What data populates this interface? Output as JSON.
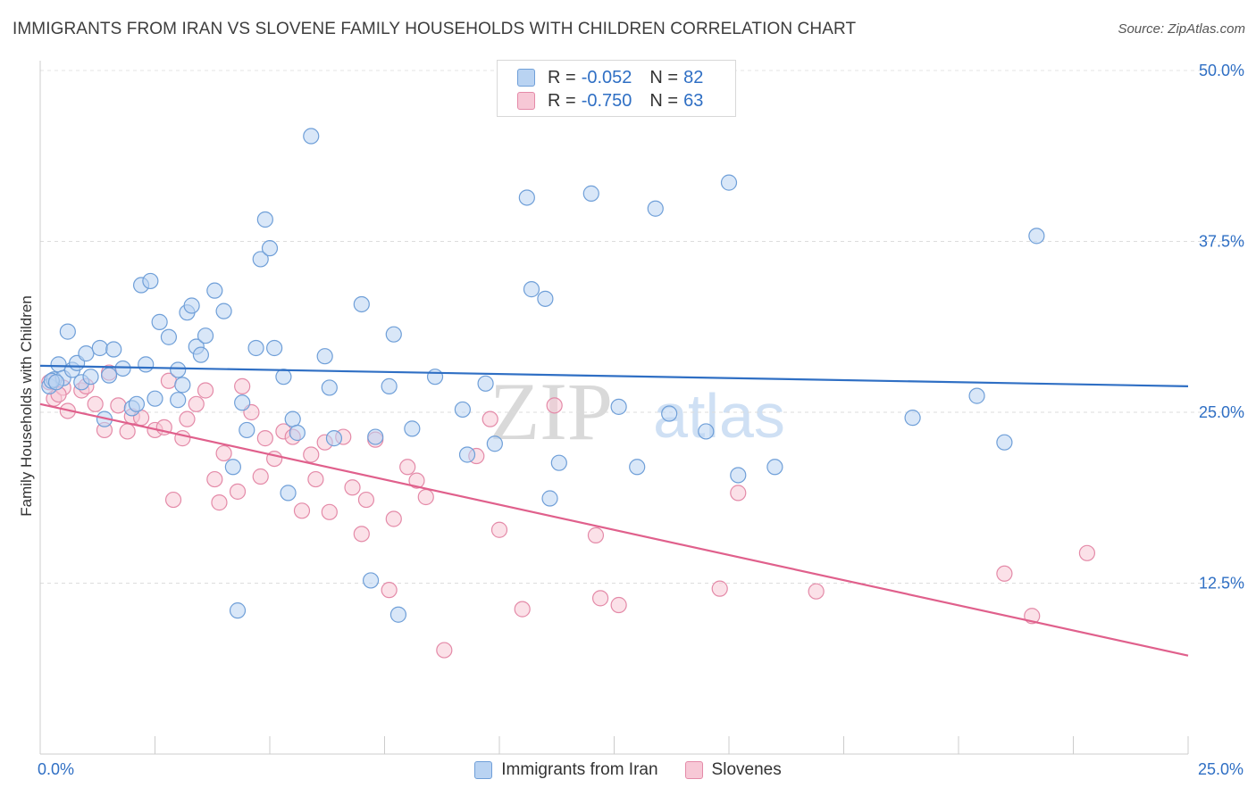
{
  "title": "IMMIGRANTS FROM IRAN VS SLOVENE FAMILY HOUSEHOLDS WITH CHILDREN CORRELATION CHART",
  "source": "Source: ZipAtlas.com",
  "watermark": {
    "zip": "ZIP",
    "atlas": "atlas"
  },
  "colors": {
    "blue_fill": "#b9d3f2",
    "blue_stroke": "#6f9fd8",
    "blue_line": "#2f6fc4",
    "pink_fill": "#f7c8d6",
    "pink_stroke": "#e48aa8",
    "pink_line": "#e0608c",
    "axis_text": "#2f6fc4"
  },
  "legend_top": [
    {
      "r_label": "R =",
      "r_value": "-0.052",
      "n_label": "N =",
      "n_value": "82"
    },
    {
      "r_label": "R =",
      "r_value": "-0.750",
      "n_label": "N =",
      "n_value": "63"
    }
  ],
  "chart_data": {
    "type": "scatter",
    "title": "IMMIGRANTS FROM IRAN VS SLOVENE FAMILY HOUSEHOLDS WITH CHILDREN CORRELATION CHART",
    "xlabel": "",
    "ylabel": "Family Households with Children",
    "xlim": [
      0,
      25
    ],
    "ylim": [
      0,
      50
    ],
    "x_tick_labels": [
      "0.0%",
      "25.0%"
    ],
    "y_ticks": [
      12.5,
      25.0,
      37.5,
      50.0
    ],
    "y_tick_labels": [
      "12.5%",
      "25.0%",
      "37.5%",
      "50.0%"
    ],
    "grid": "horizontal dashed",
    "legend_position": "bottom",
    "series": [
      {
        "name": "Immigrants from Iran",
        "trend": {
          "x": [
            0,
            25
          ],
          "y": [
            28.4,
            26.9
          ]
        },
        "points": [
          [
            0.2,
            26.9
          ],
          [
            0.3,
            27.4
          ],
          [
            0.4,
            28.5
          ],
          [
            0.5,
            27.5
          ],
          [
            0.6,
            30.9
          ],
          [
            0.7,
            28.1
          ],
          [
            0.8,
            28.6
          ],
          [
            0.9,
            27.2
          ],
          [
            1.0,
            29.3
          ],
          [
            1.1,
            27.6
          ],
          [
            1.3,
            29.7
          ],
          [
            1.4,
            24.5
          ],
          [
            1.5,
            27.7
          ],
          [
            1.6,
            29.6
          ],
          [
            1.8,
            28.2
          ],
          [
            2.0,
            25.3
          ],
          [
            2.1,
            25.6
          ],
          [
            2.2,
            34.3
          ],
          [
            2.3,
            28.5
          ],
          [
            2.4,
            34.6
          ],
          [
            2.5,
            26.0
          ],
          [
            2.6,
            31.6
          ],
          [
            2.8,
            30.5
          ],
          [
            3.0,
            25.9
          ],
          [
            3.0,
            28.1
          ],
          [
            3.1,
            27.0
          ],
          [
            3.2,
            32.3
          ],
          [
            3.3,
            32.8
          ],
          [
            3.4,
            29.8
          ],
          [
            3.5,
            29.2
          ],
          [
            3.6,
            30.6
          ],
          [
            3.8,
            33.9
          ],
          [
            4.0,
            32.4
          ],
          [
            4.2,
            21.0
          ],
          [
            4.3,
            10.5
          ],
          [
            4.4,
            25.7
          ],
          [
            4.5,
            23.7
          ],
          [
            4.7,
            29.7
          ],
          [
            4.8,
            36.2
          ],
          [
            4.9,
            39.1
          ],
          [
            5.0,
            37.0
          ],
          [
            5.1,
            29.7
          ],
          [
            5.3,
            27.6
          ],
          [
            5.4,
            19.1
          ],
          [
            5.5,
            24.5
          ],
          [
            5.6,
            23.5
          ],
          [
            5.9,
            45.2
          ],
          [
            6.2,
            29.1
          ],
          [
            6.3,
            26.8
          ],
          [
            6.4,
            23.1
          ],
          [
            7.0,
            32.9
          ],
          [
            7.2,
            12.7
          ],
          [
            7.3,
            23.2
          ],
          [
            7.6,
            26.9
          ],
          [
            7.7,
            30.7
          ],
          [
            7.8,
            10.2
          ],
          [
            8.1,
            23.8
          ],
          [
            8.6,
            27.6
          ],
          [
            9.2,
            25.2
          ],
          [
            9.3,
            21.9
          ],
          [
            9.7,
            27.1
          ],
          [
            9.9,
            22.7
          ],
          [
            10.6,
            40.7
          ],
          [
            10.7,
            34.0
          ],
          [
            11.0,
            33.3
          ],
          [
            11.1,
            18.7
          ],
          [
            11.3,
            21.3
          ],
          [
            12.0,
            41.0
          ],
          [
            12.6,
            25.4
          ],
          [
            13.0,
            21.0
          ],
          [
            13.4,
            39.9
          ],
          [
            13.7,
            24.9
          ],
          [
            14.5,
            23.6
          ],
          [
            15.0,
            41.8
          ],
          [
            15.2,
            20.4
          ],
          [
            16.0,
            21.0
          ],
          [
            19.0,
            24.6
          ],
          [
            20.4,
            26.2
          ],
          [
            21.0,
            22.8
          ],
          [
            21.7,
            37.9
          ],
          [
            0.25,
            27.3
          ],
          [
            0.35,
            27.2
          ]
        ]
      },
      {
        "name": "Slovenes",
        "trend": {
          "x": [
            0,
            25
          ],
          "y": [
            25.6,
            7.2
          ]
        },
        "points": [
          [
            0.2,
            27.2
          ],
          [
            0.3,
            26.0
          ],
          [
            0.5,
            26.8
          ],
          [
            0.6,
            25.1
          ],
          [
            0.9,
            26.6
          ],
          [
            1.0,
            26.9
          ],
          [
            1.2,
            25.6
          ],
          [
            1.4,
            23.7
          ],
          [
            1.5,
            27.9
          ],
          [
            1.7,
            25.5
          ],
          [
            1.9,
            23.6
          ],
          [
            2.0,
            24.7
          ],
          [
            2.2,
            24.6
          ],
          [
            2.5,
            23.7
          ],
          [
            2.7,
            23.9
          ],
          [
            2.8,
            27.3
          ],
          [
            2.9,
            18.6
          ],
          [
            3.1,
            23.1
          ],
          [
            3.2,
            24.5
          ],
          [
            3.4,
            25.6
          ],
          [
            3.6,
            26.6
          ],
          [
            3.8,
            20.1
          ],
          [
            3.9,
            18.4
          ],
          [
            4.0,
            22.0
          ],
          [
            4.3,
            19.2
          ],
          [
            4.4,
            26.9
          ],
          [
            4.6,
            25.0
          ],
          [
            4.8,
            20.3
          ],
          [
            4.9,
            23.1
          ],
          [
            5.1,
            21.6
          ],
          [
            5.3,
            23.6
          ],
          [
            5.5,
            23.2
          ],
          [
            5.7,
            17.8
          ],
          [
            5.9,
            21.9
          ],
          [
            6.0,
            20.1
          ],
          [
            6.2,
            22.8
          ],
          [
            6.3,
            17.7
          ],
          [
            6.6,
            23.2
          ],
          [
            6.8,
            19.5
          ],
          [
            7.0,
            16.1
          ],
          [
            7.1,
            18.6
          ],
          [
            7.3,
            23.0
          ],
          [
            7.6,
            12.0
          ],
          [
            7.7,
            17.2
          ],
          [
            8.0,
            21.0
          ],
          [
            8.2,
            20.0
          ],
          [
            8.4,
            18.8
          ],
          [
            8.8,
            7.6
          ],
          [
            9.5,
            21.8
          ],
          [
            9.8,
            24.5
          ],
          [
            10.0,
            16.4
          ],
          [
            10.5,
            10.6
          ],
          [
            11.2,
            25.5
          ],
          [
            12.1,
            16.0
          ],
          [
            12.2,
            11.4
          ],
          [
            12.6,
            10.9
          ],
          [
            14.8,
            12.1
          ],
          [
            15.2,
            19.1
          ],
          [
            16.9,
            11.9
          ],
          [
            21.0,
            13.2
          ],
          [
            21.6,
            10.1
          ],
          [
            22.8,
            14.7
          ],
          [
            0.4,
            26.3
          ]
        ]
      }
    ]
  },
  "legend_bottom": [
    "Immigrants from Iran",
    "Slovenes"
  ]
}
